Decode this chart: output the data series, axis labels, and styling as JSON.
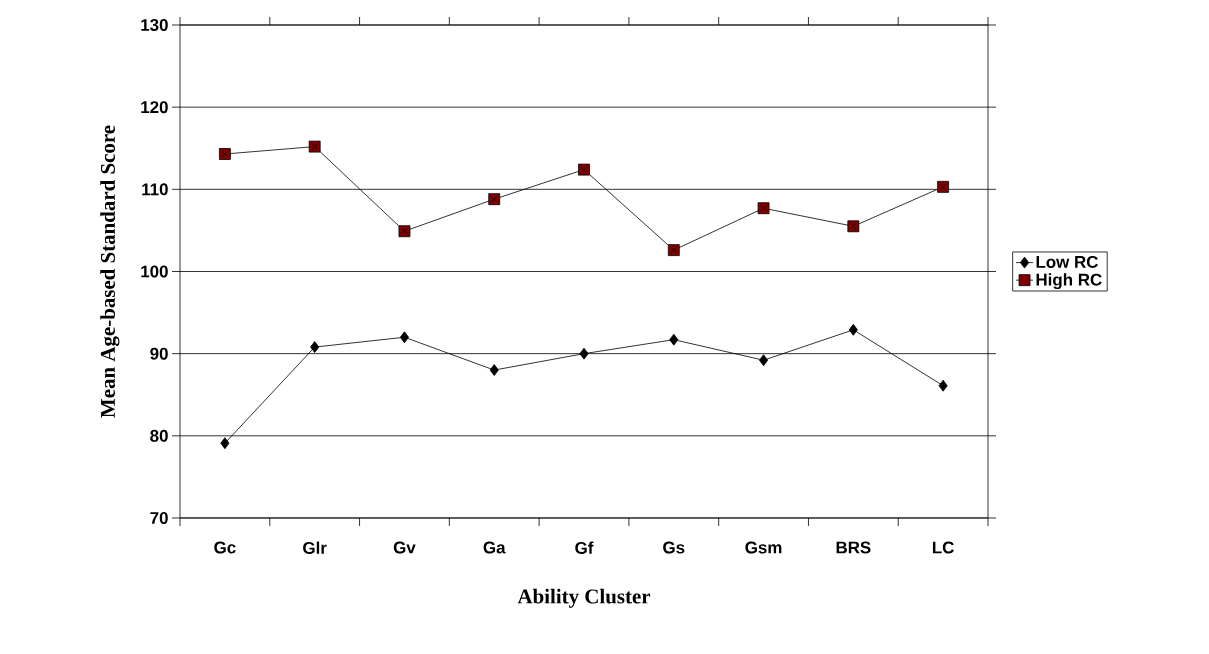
{
  "chart_data": {
    "type": "line",
    "xlabel": "Ability Cluster",
    "ylabel": "Mean Age-based Standard Score",
    "categories": [
      "Gc",
      "Glr",
      "Gv",
      "Ga",
      "Gf",
      "Gs",
      "Gsm",
      "BRS",
      "LC"
    ],
    "series": [
      {
        "name": "Low RC",
        "color": "#000000",
        "marker": "diamond",
        "values": [
          79.1,
          90.8,
          92.0,
          88.0,
          90.0,
          91.7,
          89.2,
          92.9,
          86.1
        ]
      },
      {
        "name": "High RC",
        "color": "#800000",
        "marker": "square",
        "values": [
          114.3,
          115.2,
          104.9,
          108.8,
          112.4,
          102.6,
          107.7,
          105.5,
          110.3
        ]
      }
    ],
    "ylim": [
      70,
      130
    ],
    "yticks": [
      70,
      80,
      90,
      100,
      110,
      120,
      130
    ],
    "grid": "y",
    "legend": "right",
    "line_style": "solid"
  }
}
